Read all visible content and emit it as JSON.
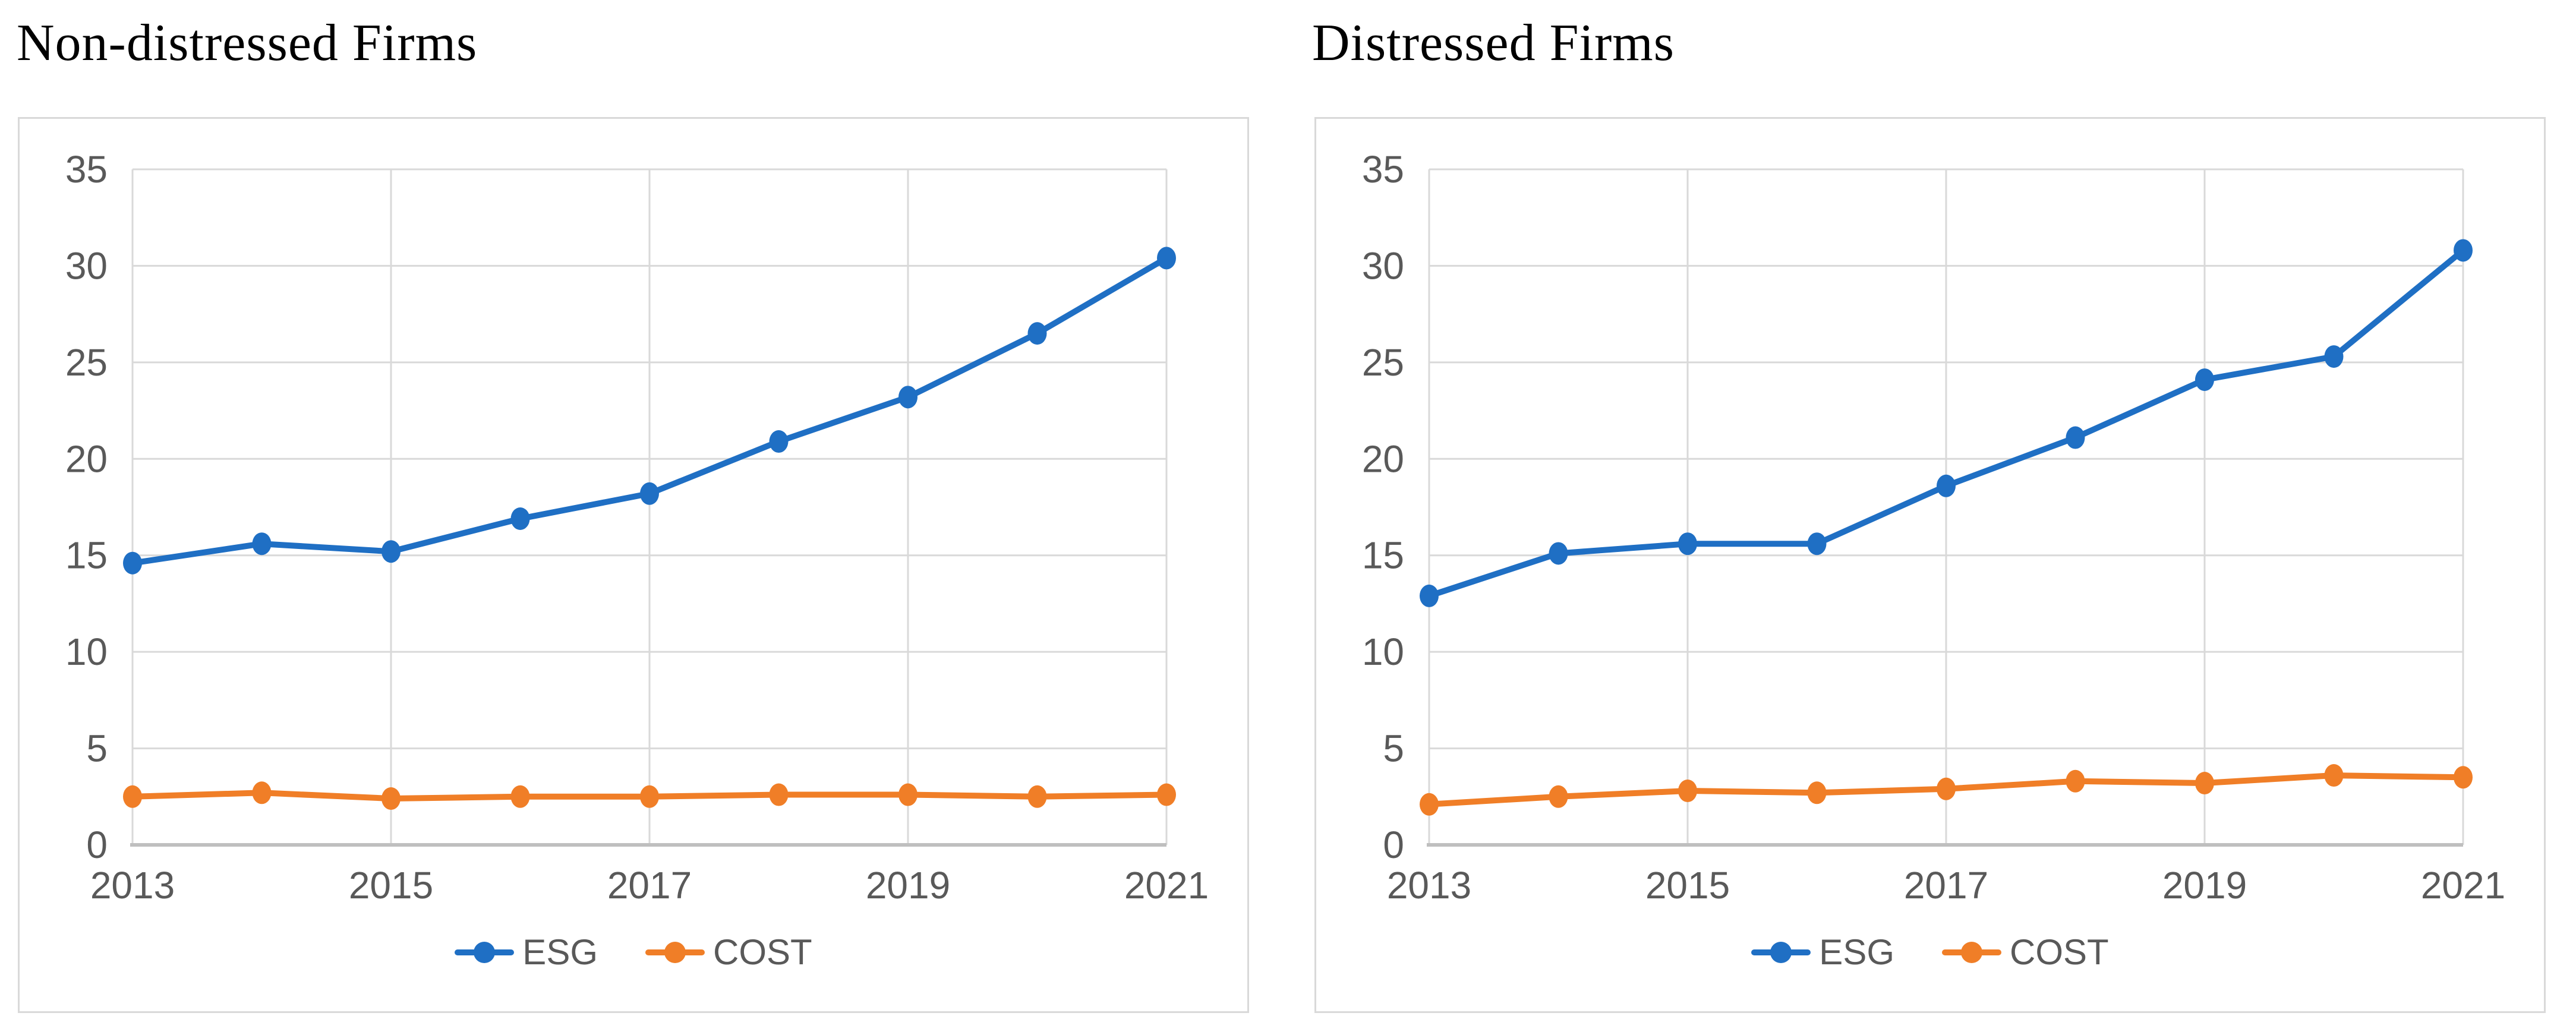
{
  "page": {
    "background": "#ffffff"
  },
  "colors": {
    "esg_line": "#1f6fc4",
    "cost_line": "#f07e27",
    "gridline": "#d9d9d9",
    "axis_line": "#bfbfbf",
    "tick_text": "#595959",
    "title_text": "#000000",
    "panel_border": "#d9d9d9"
  },
  "chart_data": [
    {
      "type": "line",
      "title": "Non-distressed Firms",
      "x": [
        2013,
        2014,
        2015,
        2016,
        2017,
        2018,
        2019,
        2020,
        2021
      ],
      "x_tick_labels": [
        "2013",
        "2015",
        "2017",
        "2019",
        "2021"
      ],
      "y_ticks": [
        0,
        5,
        10,
        15,
        20,
        25,
        30,
        35
      ],
      "ylim": [
        0,
        35
      ],
      "grid": "on",
      "legend_position": "bottom",
      "series": [
        {
          "name": "ESG",
          "color_key": "esg_line",
          "marker": "circle",
          "values": [
            14.6,
            15.6,
            15.2,
            16.9,
            18.2,
            20.9,
            23.2,
            26.5,
            30.4
          ]
        },
        {
          "name": "COST",
          "color_key": "cost_line",
          "marker": "circle",
          "values": [
            2.5,
            2.7,
            2.4,
            2.5,
            2.5,
            2.6,
            2.6,
            2.5,
            2.6
          ]
        }
      ]
    },
    {
      "type": "line",
      "title": "Distressed Firms",
      "x": [
        2013,
        2014,
        2015,
        2016,
        2017,
        2018,
        2019,
        2020,
        2021
      ],
      "x_tick_labels": [
        "2013",
        "2015",
        "2017",
        "2019",
        "2021"
      ],
      "y_ticks": [
        0,
        5,
        10,
        15,
        20,
        25,
        30,
        35
      ],
      "ylim": [
        0,
        35
      ],
      "grid": "on",
      "legend_position": "bottom",
      "series": [
        {
          "name": "ESG",
          "color_key": "esg_line",
          "marker": "circle",
          "values": [
            12.9,
            15.1,
            15.6,
            15.6,
            18.6,
            21.1,
            24.1,
            25.3,
            30.8
          ]
        },
        {
          "name": "COST",
          "color_key": "cost_line",
          "marker": "circle",
          "values": [
            2.1,
            2.5,
            2.8,
            2.7,
            2.9,
            3.3,
            3.2,
            3.6,
            3.5
          ]
        }
      ]
    }
  ]
}
